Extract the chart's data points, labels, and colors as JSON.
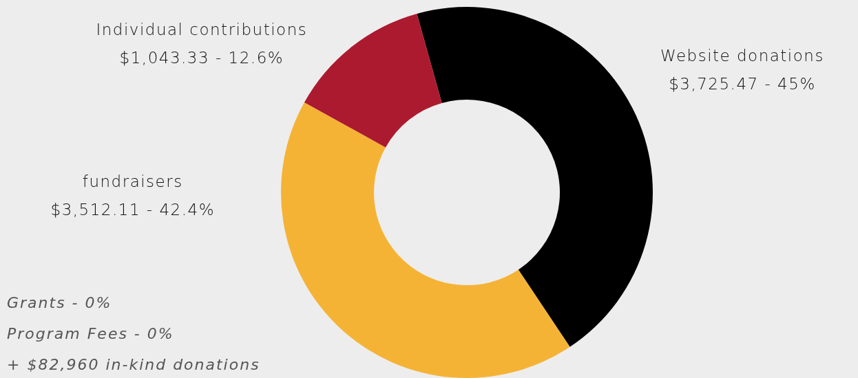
{
  "chart_data": {
    "type": "donut",
    "categories": [
      "Website donations",
      "fundraisers",
      "Individual contributions"
    ],
    "values": [
      3725.47,
      3512.11,
      1043.33
    ],
    "colors": [
      "#000000",
      "#f5b335",
      "#ac1a2f"
    ],
    "value_labels": [
      "$3,725.47 - 45%",
      "$3,512.11 - 42.4%",
      "$1,043.33 - 12.6%"
    ],
    "legend": false,
    "annotations": [
      "Grants - 0%",
      "Program Fees - 0%",
      "+ $82,960 in-kind donations"
    ]
  }
}
